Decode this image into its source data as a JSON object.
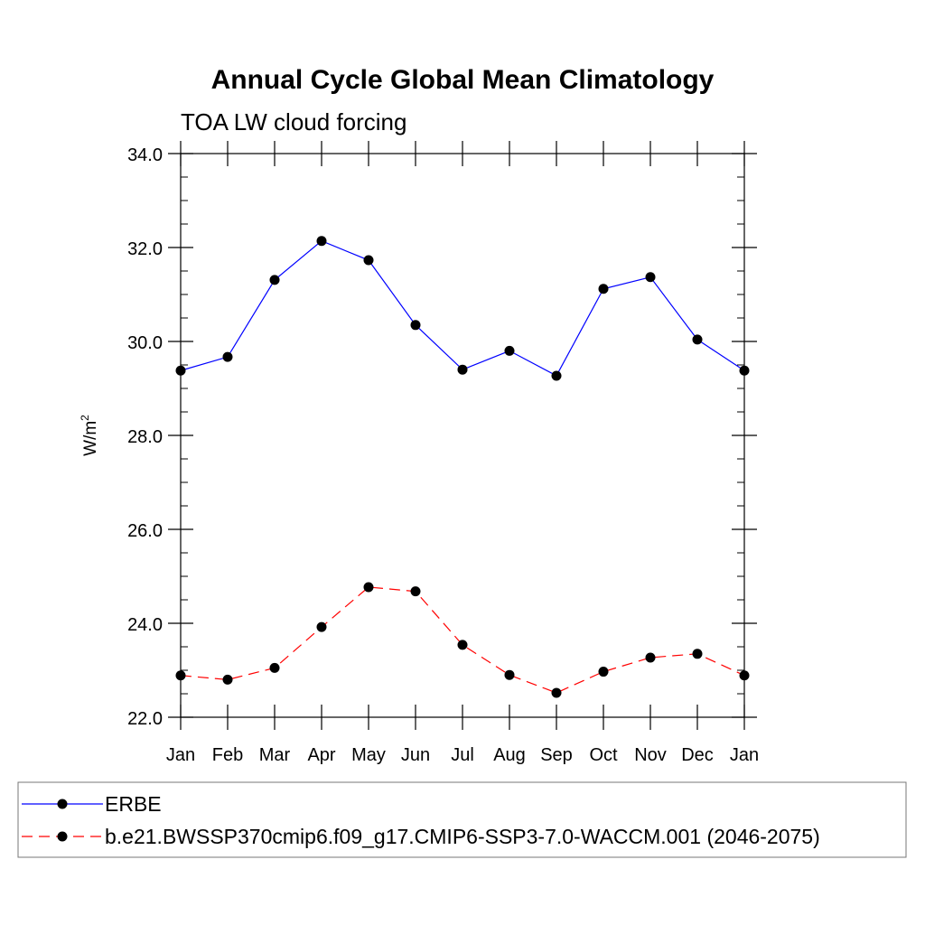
{
  "chart_data": {
    "type": "line",
    "title": "Annual Cycle Global Mean Climatology",
    "subtitle": "TOA LW cloud forcing",
    "ylabel": "W/m",
    "ylabel_superscript": "2",
    "xlabel": "",
    "categories": [
      "Jan",
      "Feb",
      "Mar",
      "Apr",
      "May",
      "Jun",
      "Jul",
      "Aug",
      "Sep",
      "Oct",
      "Nov",
      "Dec",
      "Jan"
    ],
    "ylim": [
      22.0,
      34.0
    ],
    "yticks": [
      "22.0",
      "24.0",
      "26.0",
      "28.0",
      "30.0",
      "32.0",
      "34.0"
    ],
    "series": [
      {
        "name": "ERBE",
        "color": "#0000ff",
        "style": "solid",
        "values": [
          29.38,
          29.67,
          31.31,
          32.14,
          31.73,
          30.35,
          29.4,
          29.8,
          29.27,
          31.12,
          31.37,
          30.04,
          29.38
        ]
      },
      {
        "name": "b.e21.BWSSP370cmip6.f09_g17.CMIP6-SSP3-7.0-WACCM.001 (2046-2075)",
        "color": "#ff0000",
        "style": "dashed",
        "values": [
          22.89,
          22.8,
          23.05,
          23.92,
          24.77,
          24.68,
          23.54,
          22.9,
          22.52,
          22.97,
          23.27,
          23.35,
          22.89
        ]
      }
    ],
    "legend_position": "bottom"
  }
}
